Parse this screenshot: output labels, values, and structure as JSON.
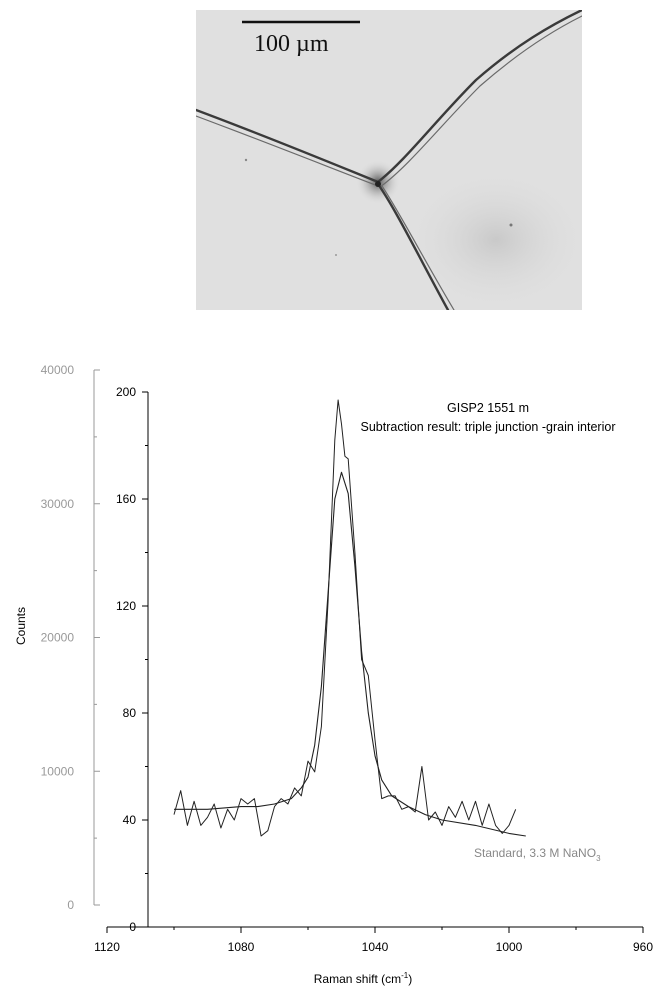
{
  "micrograph": {
    "scale_bar_label": "100 µm"
  },
  "chart_data": {
    "type": "line",
    "title_line1": "GISP2 1551 m",
    "title_line2": "Subtraction result: triple junction -grain interior",
    "xlabel": "Raman shift (cm",
    "xlabel_sup": "-1",
    "xlabel_close": ")",
    "ylabel": "Counts",
    "x_reversed": true,
    "xlim": [
      1120,
      960
    ],
    "x_ticks": [
      1120,
      1080,
      1040,
      1000,
      960
    ],
    "y_inner": {
      "lim": [
        0,
        200
      ],
      "ticks": [
        0,
        40,
        80,
        120,
        160,
        200
      ]
    },
    "y_outer": {
      "lim": [
        0,
        40000
      ],
      "ticks": [
        0,
        10000,
        20000,
        30000,
        40000
      ],
      "color": "#999999"
    },
    "annotation": "Standard, 3.3 M NaNO",
    "annotation_sub": "3",
    "series": [
      {
        "axis": "inner",
        "x": [
          1100,
          1098,
          1096,
          1094,
          1092,
          1090,
          1088,
          1086,
          1084,
          1082,
          1080,
          1078,
          1076,
          1074,
          1072,
          1070,
          1068,
          1066,
          1064,
          1062,
          1060,
          1058,
          1056,
          1054,
          1052,
          1051,
          1050,
          1049,
          1048,
          1046,
          1044,
          1042,
          1040,
          1038,
          1036,
          1034,
          1032,
          1030,
          1028,
          1026,
          1024,
          1022,
          1020,
          1018,
          1016,
          1014,
          1012,
          1010,
          1008,
          1006,
          1004,
          1002,
          1000,
          998
        ],
        "y": [
          42,
          51,
          38,
          47,
          38,
          41,
          46,
          37,
          44,
          40,
          48,
          46,
          48,
          34,
          36,
          45,
          48,
          46,
          52,
          49,
          62,
          58,
          75,
          122,
          182,
          197,
          188,
          176,
          175,
          140,
          100,
          94,
          70,
          48,
          49,
          49,
          44,
          45,
          43,
          60,
          40,
          43,
          38,
          45,
          41,
          47,
          40,
          47,
          38,
          46,
          38,
          35,
          38,
          44
        ]
      },
      {
        "axis": "inner",
        "x": [
          1100,
          1090,
          1080,
          1075,
          1070,
          1065,
          1062,
          1060,
          1058,
          1056,
          1054,
          1052,
          1050,
          1048,
          1046,
          1044,
          1042,
          1040,
          1038,
          1035,
          1030,
          1025,
          1020,
          1010,
          1000,
          995
        ],
        "y": [
          44,
          44,
          45,
          45,
          46,
          48,
          52,
          56,
          68,
          90,
          125,
          160,
          170,
          162,
          135,
          103,
          80,
          64,
          55,
          49,
          45,
          42,
          40,
          38,
          35,
          34
        ]
      }
    ]
  }
}
